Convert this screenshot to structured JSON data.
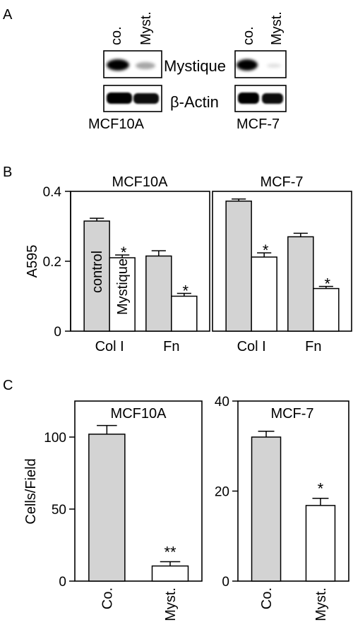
{
  "figure": {
    "panels": [
      {
        "letter": "A"
      },
      {
        "letter": "B"
      },
      {
        "letter": "C"
      }
    ]
  },
  "panel_a": {
    "lanes": [
      "co.",
      "Myst."
    ],
    "row_labels": [
      "Mystique",
      "β-Actin"
    ],
    "blots": [
      {
        "cell_line": "MCF10A",
        "mystique_intensity": [
          1.0,
          0.35
        ],
        "actin_intensity": [
          1.0,
          0.95
        ]
      },
      {
        "cell_line": "MCF-7",
        "mystique_intensity": [
          1.0,
          0.12
        ],
        "actin_intensity": [
          1.0,
          0.95
        ]
      }
    ]
  },
  "chart_data": [
    {
      "id": "B",
      "type": "bar",
      "ylabel": "A595",
      "ylim": [
        0,
        0.4
      ],
      "yticks": [
        0,
        0.2,
        0.4
      ],
      "ytick_labels": [
        "0",
        "0.2",
        "0.4"
      ],
      "bar_labels": [
        "control",
        "Mystique"
      ],
      "colors": {
        "control": "#d3d3d3",
        "mystique": "#ffffff"
      },
      "subplots": [
        {
          "title": "MCF10A",
          "categories": [
            "Col I",
            "Fn"
          ],
          "series": [
            {
              "values": [
                0.315,
                0.215
              ],
              "errors": [
                0.008,
                0.015
              ]
            },
            {
              "values": [
                0.21,
                0.1
              ],
              "errors": [
                0.008,
                0.008
              ]
            }
          ],
          "significance": [
            "*",
            "*"
          ]
        },
        {
          "title": "MCF-7",
          "categories": [
            "Col I",
            "Fn"
          ],
          "series": [
            {
              "values": [
                0.372,
                0.27
              ],
              "errors": [
                0.006,
                0.01
              ]
            },
            {
              "values": [
                0.212,
                0.122
              ],
              "errors": [
                0.012,
                0.006
              ]
            }
          ],
          "significance": [
            "*",
            "*"
          ]
        }
      ]
    },
    {
      "id": "C-left",
      "type": "bar",
      "title": "MCF10A",
      "ylabel": "Cells/Field",
      "categories": [
        "Co.",
        "Myst."
      ],
      "values": [
        102,
        10.5
      ],
      "errors": [
        6,
        3
      ],
      "ylim": [
        0,
        125
      ],
      "yticks": [
        0,
        50,
        100
      ],
      "ytick_labels": [
        "0",
        "50",
        "100"
      ],
      "significance": [
        "",
        "**"
      ],
      "colors": [
        "#d3d3d3",
        "#ffffff"
      ]
    },
    {
      "id": "C-right",
      "type": "bar",
      "title": "MCF-7",
      "categories": [
        "Co.",
        "Myst."
      ],
      "values": [
        32,
        16.8
      ],
      "errors": [
        1.3,
        1.6
      ],
      "ylim": [
        0,
        40
      ],
      "yticks": [
        0,
        20,
        40
      ],
      "ytick_labels": [
        "0",
        "20",
        "40"
      ],
      "significance": [
        "",
        "*"
      ],
      "colors": [
        "#d3d3d3",
        "#ffffff"
      ]
    }
  ]
}
